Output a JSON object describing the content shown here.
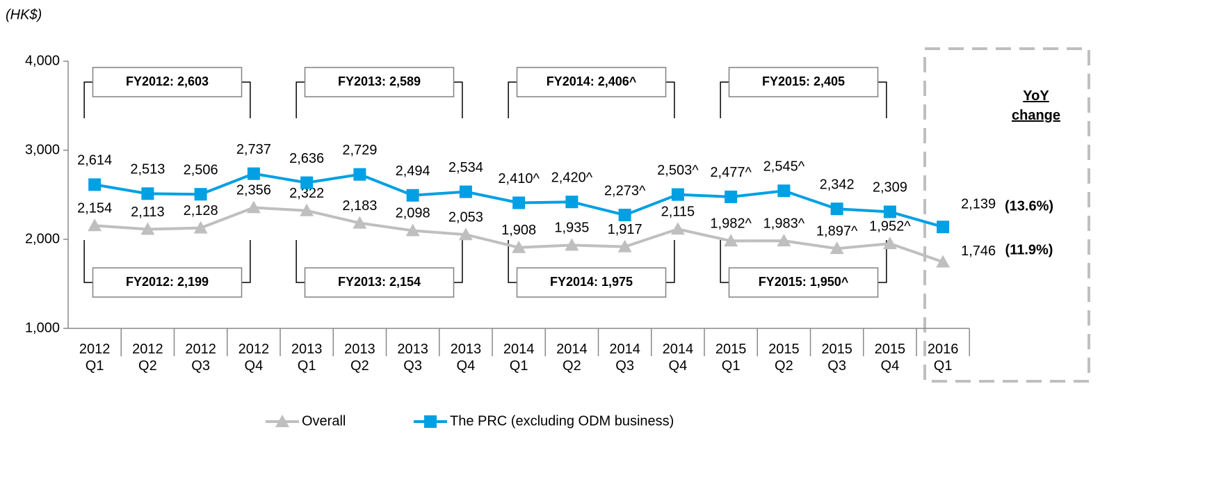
{
  "chart_data": {
    "type": "line",
    "unit_label": "(HK$)",
    "categories": [
      "2012 Q1",
      "2012 Q2",
      "2012 Q3",
      "2012 Q4",
      "2013 Q1",
      "2013 Q2",
      "2013 Q3",
      "2013 Q4",
      "2014 Q1",
      "2014 Q2",
      "2014 Q3",
      "2014 Q4",
      "2015 Q1",
      "2015 Q2",
      "2015 Q3",
      "2015 Q4",
      "2016 Q1"
    ],
    "series": [
      {
        "name": "Overall",
        "color": "#bfbfbf",
        "marker": "triangle",
        "values": [
          2154,
          2113,
          2128,
          2356,
          2322,
          2183,
          2098,
          2053,
          1908,
          1935,
          1917,
          2115,
          1982,
          1983,
          1897,
          1952,
          1746
        ],
        "value_labels": [
          "2,154",
          "2,113",
          "2,128",
          "2,356",
          "2,322",
          "2,183",
          "2,098",
          "2,053",
          "1,908",
          "1,935",
          "1,917",
          "2,115",
          "1,982^",
          "1,983^",
          "1,897^",
          "1,952^",
          "1,746"
        ]
      },
      {
        "name": "The PRC (excluding ODM business)",
        "color": "#00a0e3",
        "marker": "square",
        "values": [
          2614,
          2513,
          2506,
          2737,
          2636,
          2729,
          2494,
          2534,
          2410,
          2420,
          2273,
          2503,
          2477,
          2545,
          2342,
          2309,
          2139
        ],
        "value_labels": [
          "2,614",
          "2,513",
          "2,506",
          "2,737",
          "2,636",
          "2,729",
          "2,494",
          "2,534",
          "2,410^",
          "2,420^",
          "2,273^",
          "2,503^",
          "2,477^",
          "2,545^",
          "2,342",
          "2,309",
          "2,139"
        ]
      }
    ],
    "ylim": [
      1000,
      4000
    ],
    "yticks": [
      {
        "value": 1000,
        "label": "1,000"
      },
      {
        "value": 2000,
        "label": "2,000"
      },
      {
        "value": 3000,
        "label": "3,000"
      },
      {
        "value": 4000,
        "label": "4,000"
      }
    ],
    "grid": false,
    "legend": "bottom",
    "annotations": {
      "prc_fy": [
        "FY2012: 2,603",
        "FY2013: 2,589",
        "FY2014: 2,406^",
        "FY2015: 2,405"
      ],
      "overall_fy": [
        "FY2012: 2,199",
        "FY2013: 2,154",
        "FY2014: 1,975",
        "FY2015: 1,950^"
      ],
      "yoy_title": "YoY change",
      "yoy": [
        "(13.6%)",
        "(11.9%)"
      ]
    }
  }
}
